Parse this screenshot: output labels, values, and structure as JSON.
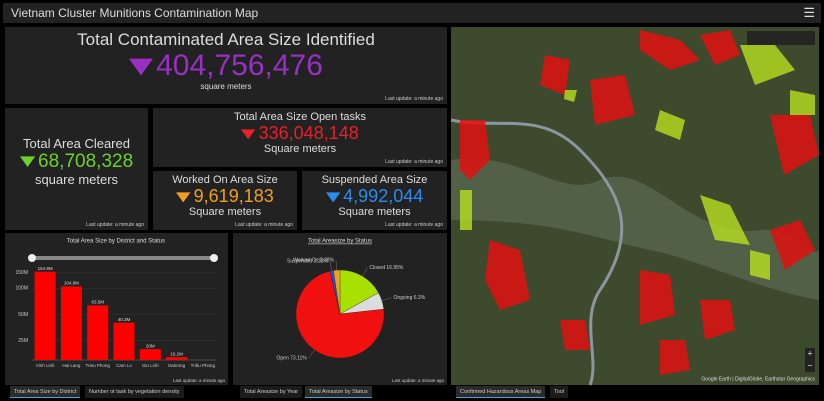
{
  "header": {
    "title": "Vietnam Cluster Munitions Contamination Map"
  },
  "indicators": [
    {
      "title": "Total Contaminated Area Size Identified",
      "value": "404,756,476",
      "unit": "square meters",
      "note": "Last update: a minute ago",
      "color": "#9a2fc4"
    },
    {
      "title": "Total Area Cleared",
      "value": "68,708,328",
      "unit": "square meters",
      "note": "Last update: a minute ago",
      "color": "#6ed02a"
    },
    {
      "title": "Total Area Size Open tasks",
      "value": "336,048,148",
      "unit": "Square meters",
      "note": "Last update: a minute ago",
      "color": "#e8202a"
    },
    {
      "title": "Worked On Area Size",
      "value": "9,619,183",
      "unit": "Square meters",
      "note": "Last update: a minute ago",
      "color": "#f0a020"
    },
    {
      "title": "Suspended Area Size",
      "value": "4,992,044",
      "unit": "Square meters",
      "note": "Last update: a minute ago",
      "color": "#2a8cf0"
    }
  ],
  "chart_data": [
    {
      "type": "bar",
      "title": "Total Area Size by District and Status",
      "categories": [
        "Vinh Linh",
        "Hai Lang",
        "Trieu Phong",
        "Cam Lo",
        "Gio Linh",
        "Dakrong",
        "Triệu Phong"
      ],
      "values": [
        154900000,
        104900000,
        63500000,
        40300000,
        20000000,
        16200000,
        null
      ],
      "value_labels": [
        "154.9M",
        "104.9M",
        "63.5M",
        "40.3M",
        "20M",
        "16.2M",
        null
      ],
      "color": "#ff0000",
      "log_scale": true,
      "ylim": [
        15000000,
        200000000
      ],
      "yticks": [
        {
          "value": 25000000,
          "label": "25M"
        },
        {
          "value": 50000000,
          "label": "50M"
        },
        {
          "value": 100000000,
          "label": "100M"
        },
        {
          "value": 150000000,
          "label": "150M"
        }
      ],
      "grid": true,
      "note": "Last update: a minute ago"
    },
    {
      "type": "pie",
      "title": "Total Areasize by Status",
      "categories": [
        "Closed",
        "Ongoing",
        "Open",
        "Suspended",
        "Worked On"
      ],
      "values": [
        16.95,
        6.3,
        73.11,
        1.23,
        2.38
      ],
      "value_labels": [
        "Closed 16.95%",
        "Ongoing 6.3%",
        "Open 73.11%",
        "Suspended 1.23%",
        "Worked On 2.38%"
      ],
      "colors": [
        "#a8e000",
        "#dcdcdc",
        "#f01010",
        "#2050d0",
        "#f0a020"
      ],
      "note": "Last update: a minute ago"
    }
  ],
  "tabs": [
    {
      "label": "Total Area Size by District",
      "active": true
    },
    {
      "label": "Number ot task by vegetation density",
      "active": false
    },
    {
      "label": "Total Areasize by Year",
      "active": false
    },
    {
      "label": "Total Areasize by Status",
      "active": true
    },
    {
      "label": "Confirmed Hazardous Areas Map",
      "active": true
    },
    {
      "label": "Tool",
      "active": false
    }
  ],
  "map": {
    "attribution": "Google Earth | DigitalGlobe, Earthstar Geographics"
  }
}
